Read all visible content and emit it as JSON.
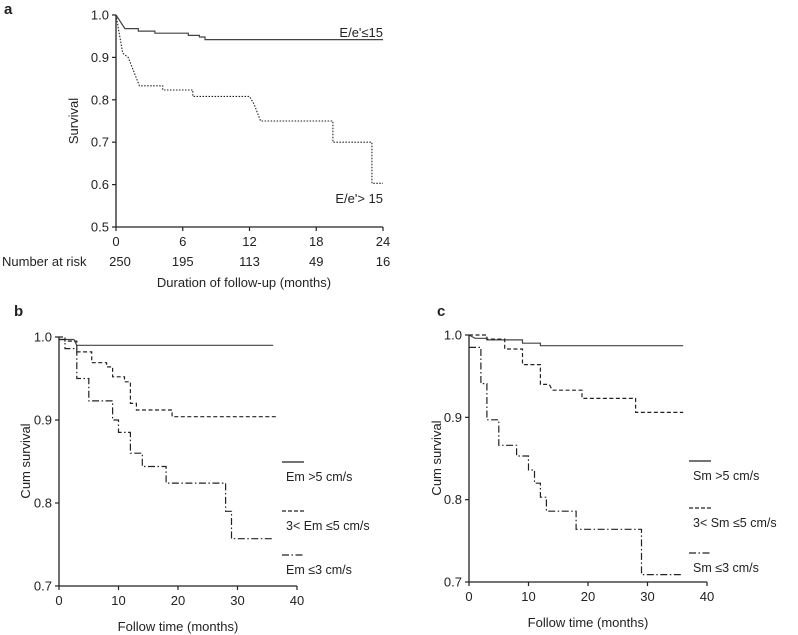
{
  "chart_data": [
    {
      "panel": "a",
      "type": "line",
      "subtype": "kaplan-meier",
      "ylabel": "Survival",
      "xlabel": "Duration of follow-up (months)",
      "xlim": [
        0,
        24
      ],
      "ylim": [
        0.5,
        1.0
      ],
      "xticks": [
        "0",
        "6",
        "12",
        "18",
        "24"
      ],
      "yticks": [
        "0.5",
        "0.6",
        "0.7",
        "0.8",
        "0.9",
        "1.0"
      ],
      "risk_label": "Number at risk",
      "risk_values": [
        "250",
        "195",
        "113",
        "49",
        "16"
      ],
      "series": [
        {
          "name": "E/e'≤15",
          "style": "solid",
          "points": [
            [
              0,
              1.0
            ],
            [
              0.8,
              0.968
            ],
            [
              2,
              0.968
            ],
            [
              2,
              0.962
            ],
            [
              3.5,
              0.962
            ],
            [
              3.5,
              0.957
            ],
            [
              6.5,
              0.957
            ],
            [
              6.5,
              0.952
            ],
            [
              7.5,
              0.952
            ],
            [
              7.5,
              0.948
            ],
            [
              8,
              0.948
            ],
            [
              8,
              0.942
            ],
            [
              24,
              0.942
            ]
          ]
        },
        {
          "name": "E/e'> 15",
          "style": "dotted",
          "points": [
            [
              0,
              1.0
            ],
            [
              0.6,
              0.91
            ],
            [
              1.1,
              0.9
            ],
            [
              2.1,
              0.833
            ],
            [
              4.2,
              0.833
            ],
            [
              4.2,
              0.823
            ],
            [
              6.9,
              0.823
            ],
            [
              6.9,
              0.808
            ],
            [
              12,
              0.808
            ],
            [
              12.4,
              0.79
            ],
            [
              12.7,
              0.77
            ],
            [
              13,
              0.75
            ],
            [
              19.5,
              0.75
            ],
            [
              19.5,
              0.7
            ],
            [
              23,
              0.7
            ],
            [
              23,
              0.603
            ],
            [
              24,
              0.603
            ]
          ]
        }
      ]
    },
    {
      "panel": "b",
      "type": "line",
      "subtype": "kaplan-meier",
      "ylabel": "Cum survival",
      "xlabel": "Follow time (months)",
      "xlim": [
        0,
        40
      ],
      "ylim": [
        0.7,
        1.0
      ],
      "xticks": [
        "0",
        "10",
        "20",
        "30",
        "40"
      ],
      "yticks": [
        "0.7",
        "0.8",
        "0.9",
        "1.0"
      ],
      "series": [
        {
          "name": "Em >5 cm/s",
          "style": "solid",
          "points": [
            [
              0,
              0.997
            ],
            [
              2.5,
              0.997
            ],
            [
              3,
              0.99
            ],
            [
              36,
              0.99
            ]
          ]
        },
        {
          "name": "3< Em ≤5 cm/s",
          "style": "dashed",
          "points": [
            [
              0,
              1.0
            ],
            [
              1,
              1.0
            ],
            [
              1,
              0.995
            ],
            [
              3,
              0.995
            ],
            [
              3,
              0.982
            ],
            [
              5.5,
              0.982
            ],
            [
              5.5,
              0.969
            ],
            [
              8,
              0.969
            ],
            [
              8,
              0.964
            ],
            [
              9,
              0.964
            ],
            [
              9,
              0.952
            ],
            [
              11,
              0.952
            ],
            [
              11,
              0.946
            ],
            [
              12,
              0.946
            ],
            [
              12,
              0.92
            ],
            [
              13,
              0.92
            ],
            [
              13,
              0.912
            ],
            [
              19,
              0.912
            ],
            [
              19,
              0.904
            ],
            [
              36.5,
              0.904
            ]
          ]
        },
        {
          "name": "Em ≤3 cm/s",
          "style": "dashdot",
          "points": [
            [
              0,
              0.997
            ],
            [
              1,
              0.997
            ],
            [
              1,
              0.986
            ],
            [
              3,
              0.986
            ],
            [
              3,
              0.95
            ],
            [
              5,
              0.95
            ],
            [
              5,
              0.923
            ],
            [
              9,
              0.923
            ],
            [
              9,
              0.9
            ],
            [
              10,
              0.9
            ],
            [
              10,
              0.885
            ],
            [
              12,
              0.885
            ],
            [
              12,
              0.86
            ],
            [
              14,
              0.86
            ],
            [
              14,
              0.844
            ],
            [
              18,
              0.844
            ],
            [
              18,
              0.824
            ],
            [
              28,
              0.824
            ],
            [
              28,
              0.79
            ],
            [
              29,
              0.79
            ],
            [
              29,
              0.757
            ],
            [
              36,
              0.757
            ]
          ]
        }
      ]
    },
    {
      "panel": "c",
      "type": "line",
      "subtype": "kaplan-meier",
      "ylabel": "Cum survival",
      "xlabel": "Follow time (months)",
      "xlim": [
        0,
        40
      ],
      "ylim": [
        0.7,
        1.0
      ],
      "xticks": [
        "0",
        "10",
        "20",
        "30",
        "40"
      ],
      "yticks": [
        "0.7",
        "0.8",
        "0.9",
        "1.0"
      ],
      "series": [
        {
          "name": "Sm >5 cm/s",
          "style": "solid",
          "points": [
            [
              0,
              1.0
            ],
            [
              0.5,
              0.998
            ],
            [
              1,
              0.996
            ],
            [
              3,
              0.996
            ],
            [
              3,
              0.994
            ],
            [
              9,
              0.994
            ],
            [
              9,
              0.99
            ],
            [
              12,
              0.99
            ],
            [
              12,
              0.987
            ],
            [
              36,
              0.987
            ]
          ]
        },
        {
          "name": "3< Sm ≤5 cm/s",
          "style": "dashed",
          "points": [
            [
              0,
              1.0
            ],
            [
              3,
              1.0
            ],
            [
              3,
              0.995
            ],
            [
              6,
              0.995
            ],
            [
              6,
              0.983
            ],
            [
              9,
              0.983
            ],
            [
              9,
              0.964
            ],
            [
              12,
              0.964
            ],
            [
              12,
              0.94
            ],
            [
              13.5,
              0.94
            ],
            [
              14,
              0.933
            ],
            [
              19,
              0.933
            ],
            [
              19,
              0.923
            ],
            [
              28,
              0.923
            ],
            [
              28,
              0.906
            ],
            [
              36,
              0.906
            ]
          ]
        },
        {
          "name": "Sm ≤3 cm/s",
          "style": "dashdot",
          "points": [
            [
              0,
              0.985
            ],
            [
              2,
              0.985
            ],
            [
              2,
              0.941
            ],
            [
              3,
              0.941
            ],
            [
              3,
              0.897
            ],
            [
              5,
              0.897
            ],
            [
              5,
              0.866
            ],
            [
              8,
              0.866
            ],
            [
              8,
              0.853
            ],
            [
              10,
              0.853
            ],
            [
              10,
              0.836
            ],
            [
              11,
              0.836
            ],
            [
              11,
              0.82
            ],
            [
              12,
              0.82
            ],
            [
              12,
              0.803
            ],
            [
              13,
              0.803
            ],
            [
              13,
              0.786
            ],
            [
              18,
              0.786
            ],
            [
              18,
              0.764
            ],
            [
              29,
              0.764
            ],
            [
              29,
              0.709
            ],
            [
              36,
              0.709
            ]
          ]
        }
      ]
    }
  ]
}
